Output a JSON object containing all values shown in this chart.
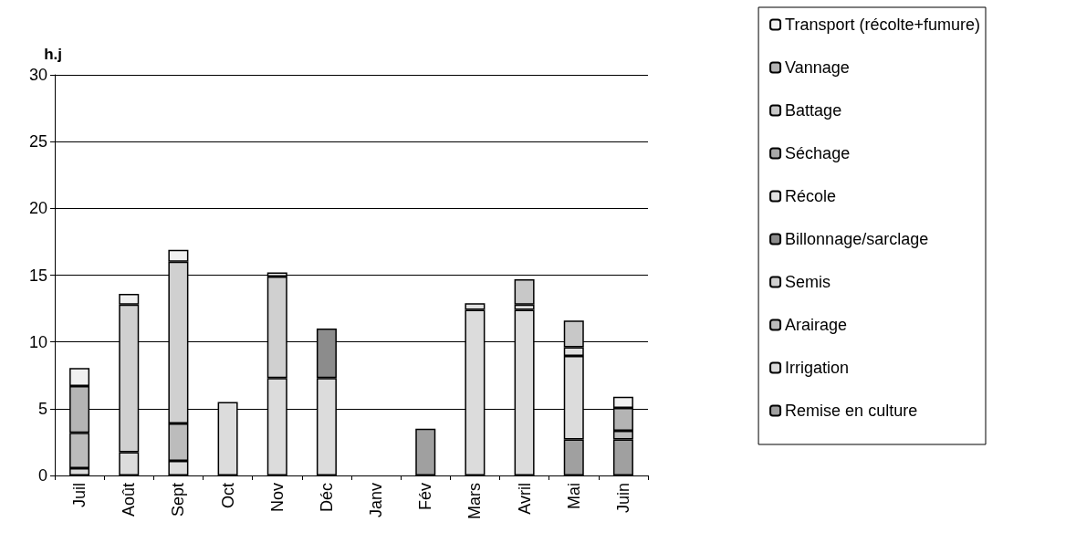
{
  "chart_data": {
    "type": "bar",
    "stacked": true,
    "ylabel": "h.j",
    "categories": [
      "Juil",
      "Août",
      "Sept",
      "Oct",
      "Nov",
      "Déc",
      "Janv",
      "Fév",
      "Mars",
      "Avril",
      "Mai",
      "Juin"
    ],
    "series": [
      {
        "name": "Remise en culture",
        "color": "#a0a0a0",
        "values": [
          null,
          null,
          null,
          null,
          null,
          null,
          null,
          3.5,
          null,
          null,
          2.7,
          2.7
        ]
      },
      {
        "name": "Irrigation",
        "color": "#dcdcdc",
        "values": [
          0.55,
          1.75,
          1.1,
          5.5,
          7.3,
          7.3,
          null,
          null,
          12.4,
          12.4,
          6.25,
          null
        ]
      },
      {
        "name": "Arairage",
        "color": "#bcbcbc",
        "values": [
          2.65,
          null,
          2.8,
          null,
          null,
          null,
          null,
          null,
          null,
          null,
          null,
          0.65
        ]
      },
      {
        "name": "Semis",
        "color": "#d0d0d0",
        "values": [
          null,
          11.05,
          12.1,
          null,
          7.6,
          null,
          null,
          null,
          null,
          null,
          null,
          null
        ]
      },
      {
        "name": "Billonnage/sarclage",
        "color": "#8c8c8c",
        "values": [
          null,
          null,
          null,
          null,
          null,
          3.7,
          null,
          null,
          null,
          null,
          null,
          null
        ]
      },
      {
        "name": "Récole",
        "color": "#e0e0e0",
        "values": [
          null,
          null,
          null,
          null,
          null,
          null,
          null,
          null,
          0.5,
          0.4,
          0.65,
          null
        ]
      },
      {
        "name": "Séchage",
        "color": "#a8a8a8",
        "values": [
          null,
          null,
          null,
          null,
          null,
          null,
          null,
          null,
          null,
          null,
          null,
          null
        ]
      },
      {
        "name": "Battage",
        "color": "#c8c8c8",
        "values": [
          null,
          null,
          null,
          null,
          null,
          null,
          null,
          null,
          null,
          1.9,
          2.0,
          null
        ]
      },
      {
        "name": "Vannage",
        "color": "#b4b4b4",
        "values": [
          3.5,
          null,
          null,
          null,
          null,
          null,
          null,
          null,
          null,
          null,
          null,
          1.7
        ]
      },
      {
        "name": "Transport (récolte+fumure)",
        "color": "#f0f0f0",
        "values": [
          1.35,
          0.8,
          0.9,
          null,
          0.3,
          null,
          null,
          null,
          null,
          null,
          null,
          0.85
        ]
      }
    ],
    "ylim": [
      0,
      30
    ],
    "yticks": [
      0,
      5,
      10,
      15,
      20,
      25,
      30
    ],
    "grid": "y",
    "legend": "right"
  }
}
